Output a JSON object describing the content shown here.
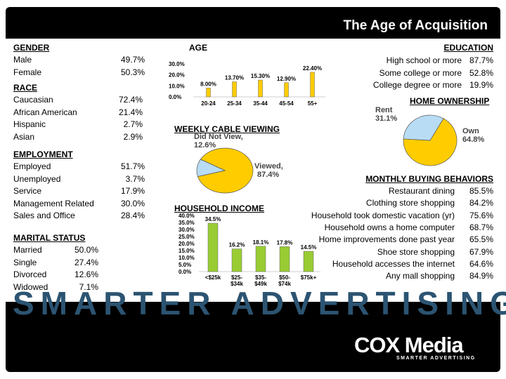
{
  "title": "The Age of Acquisition",
  "gender": {
    "header": "GENDER",
    "rows": [
      {
        "label": "Male",
        "value": "49.7%"
      },
      {
        "label": "Female",
        "value": "50.3%"
      }
    ]
  },
  "race": {
    "header": "RACE",
    "rows": [
      {
        "label": "Caucasian",
        "value": "72.4%"
      },
      {
        "label": "African American",
        "value": "21.4%"
      },
      {
        "label": "Hispanic",
        "value": "2.7%"
      },
      {
        "label": "Asian",
        "value": "2.9%"
      }
    ]
  },
  "employment": {
    "header": "EMPLOYMENT",
    "rows": [
      {
        "label": "Employed",
        "value": "51.7%"
      },
      {
        "label": "Unemployed",
        "value": "3.7%"
      },
      {
        "label": "Service",
        "value": "17.9%"
      },
      {
        "label": "Management Related",
        "value": "30.0%"
      },
      {
        "label": "Sales and Office",
        "value": "28.4%"
      }
    ]
  },
  "marital": {
    "header": "MARITAL STATUS",
    "rows": [
      {
        "label": "Married",
        "value": "50.0%"
      },
      {
        "label": "Single",
        "value": "27.4%"
      },
      {
        "label": "Divorced",
        "value": "12.6%"
      },
      {
        "label": "Widowed",
        "value": "7.1%"
      }
    ]
  },
  "education": {
    "header": "EDUCATION",
    "rows": [
      {
        "label": "High school or more",
        "value": "87.7%"
      },
      {
        "label": "Some college or more",
        "value": "52.8%"
      },
      {
        "label": "College degree or more",
        "value": "19.9%"
      }
    ]
  },
  "home_ownership": {
    "header": "HOME OWNERSHIP"
  },
  "cable": {
    "header": "WEEKLY CABLE VIEWING"
  },
  "household_income": {
    "header": "HOUSEHOLD INCOME"
  },
  "buying": {
    "header": "MONTHLY BUYING BEHAVIORS",
    "rows": [
      {
        "label": "Restaurant dining",
        "value": "85.5%"
      },
      {
        "label": "Clothing store shopping",
        "value": "84.2%"
      },
      {
        "label": "Household took domestic vacation (yr)",
        "value": "75.6%"
      },
      {
        "label": "Household owns a home computer",
        "value": "68.7%"
      },
      {
        "label": "Home improvements done past year",
        "value": "65.5%"
      },
      {
        "label": "Shoe store shopping",
        "value": "67.9%"
      },
      {
        "label": "Household accesses the internet",
        "value": "64.6%"
      },
      {
        "label": "Any mall shopping",
        "value": "84.9%"
      }
    ]
  },
  "watermark": "SMARTER ADVERTISING",
  "logo": {
    "name": "COX Media",
    "tagline": "SMARTER ADVERTISING"
  },
  "colors": {
    "yellow": "#ffcc00",
    "green": "#99cc33",
    "light_blue": "#b8dcf4",
    "dark_blue": "#2c5472"
  },
  "chart_data": [
    {
      "type": "bar",
      "title": "AGE",
      "categories": [
        "20-24",
        "25-34",
        "35-44",
        "45-54",
        "55+"
      ],
      "values": [
        8.0,
        13.7,
        15.3,
        12.9,
        22.4
      ],
      "value_labels": [
        "8.00%",
        "13.70%",
        "15.30%",
        "12.90%",
        "22.40%"
      ],
      "yticks": [
        "0.0%",
        "10.0%",
        "20.0%",
        "30.0%"
      ],
      "ylim": [
        0,
        30
      ],
      "color": "#ffcc00"
    },
    {
      "type": "pie",
      "title": "HOME OWNERSHIP",
      "slices": [
        {
          "label": "Own",
          "value": 64.8,
          "text": "64.8%",
          "color": "#ffcc00"
        },
        {
          "label": "Rent",
          "value": 31.1,
          "text": "31.1%",
          "color": "#b8dcf4"
        }
      ]
    },
    {
      "type": "pie",
      "title": "WEEKLY CABLE VIEWING",
      "slices": [
        {
          "label": "Viewed,",
          "value": 87.4,
          "text": "87.4%",
          "color": "#ffcc00"
        },
        {
          "label": "Did Not View,",
          "value": 12.6,
          "text": "12.6%",
          "color": "#b8dcf4"
        }
      ]
    },
    {
      "type": "bar",
      "title": "HOUSEHOLD INCOME",
      "categories": [
        [
          "<$25k"
        ],
        [
          "$25-",
          "$34k"
        ],
        [
          "$35-",
          "$49k"
        ],
        [
          "$50-",
          "$74k"
        ],
        [
          "$75k+"
        ]
      ],
      "values": [
        34.5,
        16.2,
        18.1,
        17.8,
        14.5
      ],
      "value_labels": [
        "34.5%",
        "16.2%",
        "18.1%",
        "17.8%",
        "14.5%"
      ],
      "yticks": [
        "0.0%",
        "5.0%",
        "10.0%",
        "15.0%",
        "20.0%",
        "25.0%",
        "30.0%",
        "35.0%",
        "40.0%"
      ],
      "ylim": [
        0,
        40
      ],
      "color": "#99cc33"
    }
  ]
}
